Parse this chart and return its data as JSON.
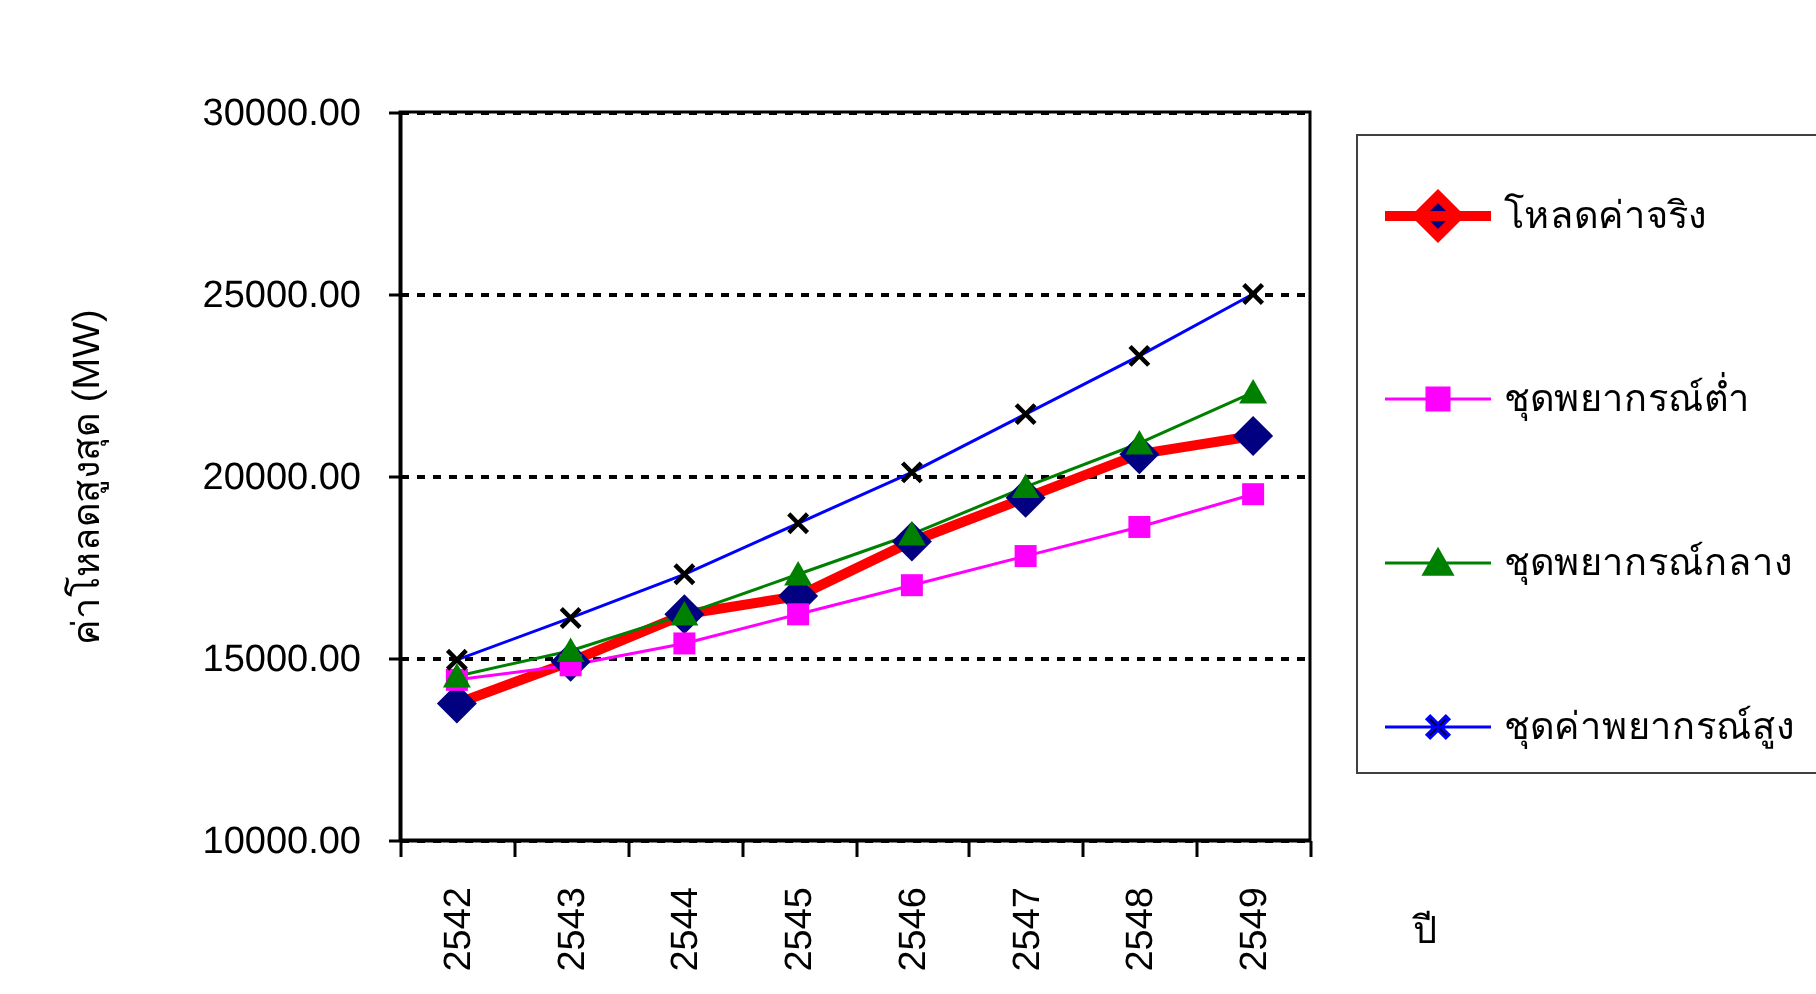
{
  "chart_data": {
    "type": "line",
    "xlabel": "ปี",
    "ylabel": "ค่าโหลดสูงสุด (MW)",
    "categories": [
      "2542",
      "2543",
      "2544",
      "2545",
      "2546",
      "2547",
      "2548",
      "2549"
    ],
    "ylim": [
      10000,
      30000
    ],
    "yticks": [
      {
        "value": 10000,
        "label": "10000.00"
      },
      {
        "value": 15000,
        "label": "15000.00"
      },
      {
        "value": 20000,
        "label": "20000.00"
      },
      {
        "value": 25000,
        "label": "25000.00"
      },
      {
        "value": 30000,
        "label": "30000.00"
      }
    ],
    "grid": "y",
    "legend": "right",
    "series": [
      {
        "name": "โหลดค่าจริง",
        "color": "#ff0000",
        "marker": "diamond",
        "values": [
          13750,
          14900,
          16200,
          16700,
          18200,
          19400,
          20600,
          21100
        ]
      },
      {
        "name": "ชุดพยากรณ์ต่ำ",
        "color": "#ff00ff",
        "marker": "square",
        "values": [
          14400,
          14800,
          15400,
          16200,
          17000,
          17800,
          18600,
          19500
        ]
      },
      {
        "name": "ชุดพยากรณ์กลาง",
        "color": "#008000",
        "marker": "triangle",
        "values": [
          14500,
          15200,
          16200,
          17300,
          18400,
          19700,
          20900,
          22300
        ]
      },
      {
        "name": "ชุดค่าพยากรณ์สูง",
        "color": "#0000ff",
        "marker": "cross",
        "values": [
          14950,
          16100,
          17300,
          18700,
          20100,
          21700,
          23300,
          25000
        ]
      }
    ]
  }
}
